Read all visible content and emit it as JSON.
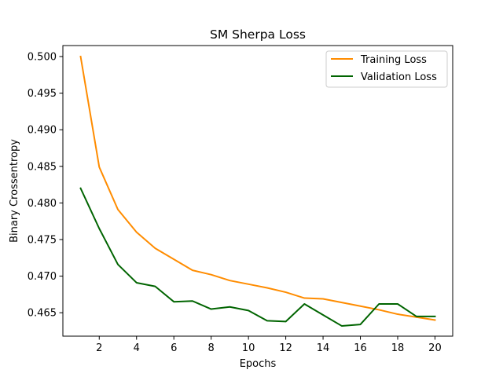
{
  "chart_data": {
    "type": "line",
    "title": "SM Sherpa Loss",
    "xlabel": "Epochs",
    "ylabel": "Binary Crossentropy",
    "x": [
      1,
      2,
      3,
      4,
      5,
      6,
      7,
      8,
      9,
      10,
      11,
      12,
      13,
      14,
      15,
      16,
      17,
      18,
      19,
      20
    ],
    "xlim": [
      0.05,
      20.95
    ],
    "ylim": [
      0.4618,
      0.5015
    ],
    "xticks": [
      2,
      4,
      6,
      8,
      10,
      12,
      14,
      16,
      18,
      20
    ],
    "xtick_labels": [
      "2",
      "4",
      "6",
      "8",
      "10",
      "12",
      "14",
      "16",
      "18",
      "20"
    ],
    "yticks": [
      0.465,
      0.47,
      0.475,
      0.48,
      0.485,
      0.49,
      0.495,
      0.5
    ],
    "ytick_labels": [
      "0.465",
      "0.470",
      "0.475",
      "0.480",
      "0.485",
      "0.490",
      "0.495",
      "0.500"
    ],
    "grid": false,
    "legend_position": "top-right",
    "series": [
      {
        "name": "Training Loss",
        "color": "#ff8c00",
        "values": [
          0.5,
          0.4849,
          0.4791,
          0.476,
          0.4738,
          0.4723,
          0.4708,
          0.4702,
          0.4694,
          0.4689,
          0.4684,
          0.4678,
          0.467,
          0.4669,
          0.4664,
          0.4659,
          0.4654,
          0.4648,
          0.4644,
          0.464
        ]
      },
      {
        "name": "Validation Loss",
        "color": "#006400",
        "values": [
          0.482,
          0.4765,
          0.4716,
          0.4691,
          0.4686,
          0.4665,
          0.4666,
          0.4655,
          0.4658,
          0.4653,
          0.4639,
          0.4638,
          0.4662,
          0.4647,
          0.4632,
          0.4634,
          0.4662,
          0.4662,
          0.4645,
          0.4645
        ]
      }
    ]
  }
}
